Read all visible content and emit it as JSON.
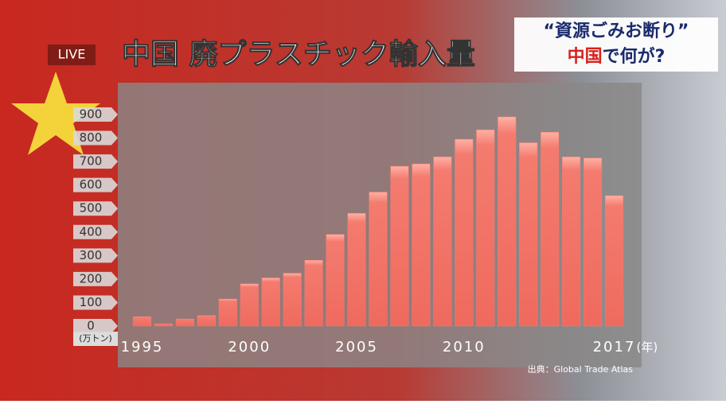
{
  "header": {
    "live": "LIVE",
    "title": "中国 廃プラスチック輸入量"
  },
  "side": {
    "quote": "“資源ごみお断り”",
    "red": "中国",
    "rest": "で何が?"
  },
  "chart_data": {
    "type": "bar",
    "categories": [
      "1995",
      null,
      null,
      null,
      null,
      "2000",
      null,
      null,
      null,
      null,
      "2005",
      null,
      null,
      null,
      null,
      "2010",
      null,
      null,
      null,
      null,
      null,
      null,
      "2017"
    ],
    "values": [
      40,
      10,
      30,
      45,
      115,
      180,
      205,
      225,
      280,
      390,
      480,
      570,
      680,
      690,
      720,
      795,
      835,
      890,
      780,
      825,
      720,
      715,
      555
    ],
    "color": "#f47b6f",
    "ylim": [
      0,
      900
    ],
    "yticks": [
      0,
      100,
      200,
      300,
      400,
      500,
      600,
      700,
      800,
      900
    ],
    "y_unit": "(万トン)",
    "x_unit": "(年)",
    "source": "出典：Global Trade Atlas"
  }
}
